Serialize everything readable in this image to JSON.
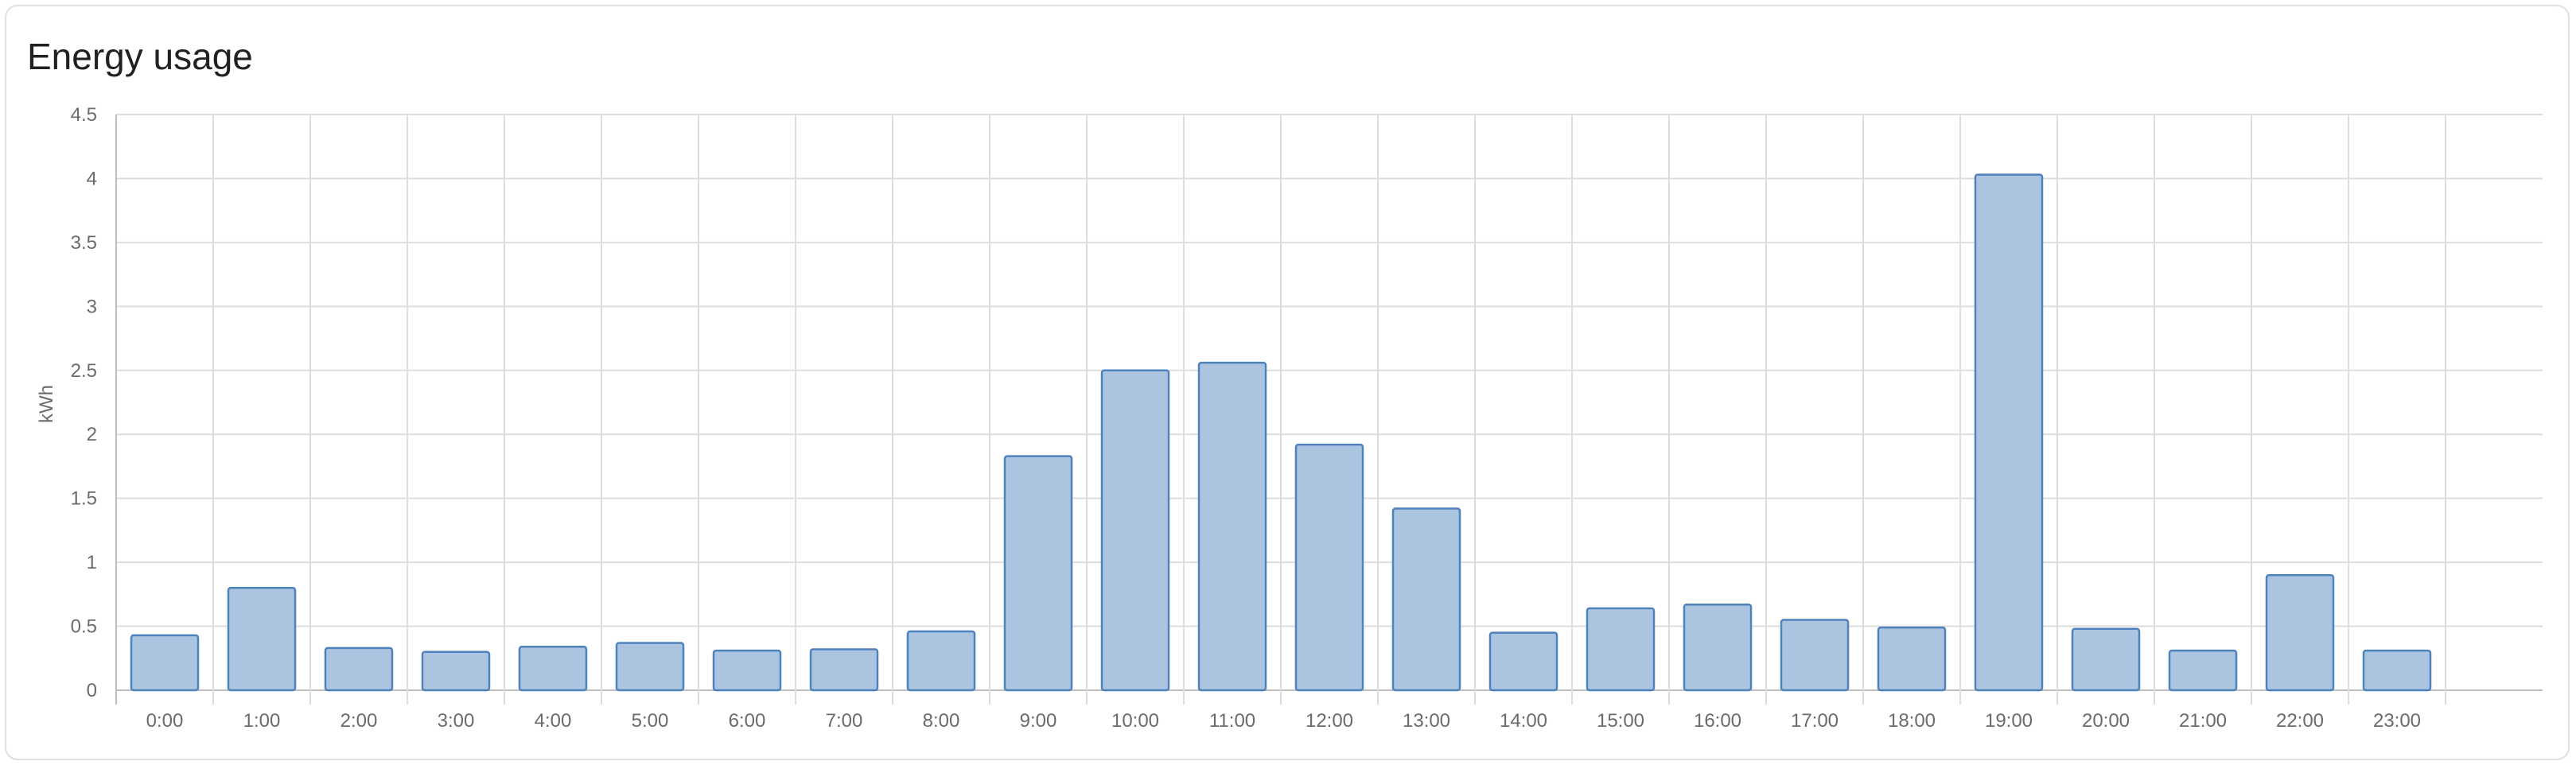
{
  "card": {
    "title": "Energy usage"
  },
  "colors": {
    "bar_fill": "#abc5e1",
    "bar_stroke": "#4f81bd",
    "grid": "#dddddd",
    "axis": "#bdbdbd"
  },
  "chart_data": {
    "type": "bar",
    "title": "Energy usage",
    "xlabel": "",
    "ylabel": "kWh",
    "ylim": [
      0,
      4.5
    ],
    "yticks": [
      "0",
      "0.5",
      "1",
      "1.5",
      "2",
      "2.5",
      "3",
      "3.5",
      "4",
      "4.5"
    ],
    "grid": true,
    "legend": "none",
    "categories": [
      "0:00",
      "1:00",
      "2:00",
      "3:00",
      "4:00",
      "5:00",
      "6:00",
      "7:00",
      "8:00",
      "9:00",
      "10:00",
      "11:00",
      "12:00",
      "13:00",
      "14:00",
      "15:00",
      "16:00",
      "17:00",
      "18:00",
      "19:00",
      "20:00",
      "21:00",
      "22:00",
      "23:00"
    ],
    "values": [
      0.43,
      0.8,
      0.33,
      0.3,
      0.34,
      0.37,
      0.31,
      0.32,
      0.46,
      1.83,
      2.5,
      2.56,
      1.92,
      1.42,
      0.45,
      0.64,
      0.67,
      0.55,
      0.49,
      4.03,
      0.48,
      0.31,
      0.9,
      0.31
    ]
  }
}
